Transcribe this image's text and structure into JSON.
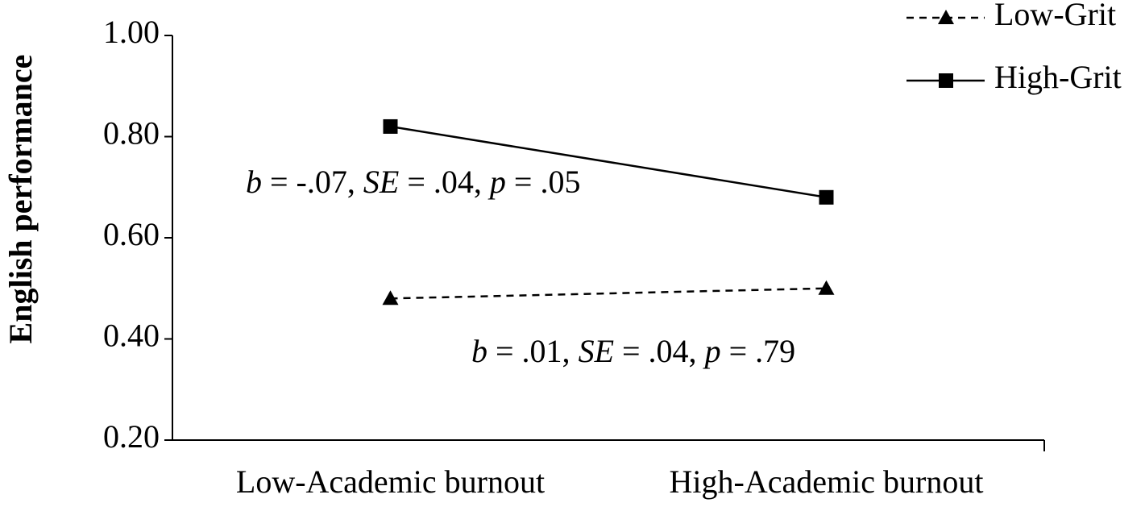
{
  "chart_data": {
    "type": "line",
    "y_label": "English performance",
    "categories": [
      "Low-Academic burnout",
      "High-Academic burnout"
    ],
    "series": [
      {
        "name": "Low-Grit",
        "color": "#000000",
        "dashed": true,
        "marker": "triangle",
        "values": [
          0.48,
          0.5
        ]
      },
      {
        "name": "High-Grit",
        "color": "#000000",
        "dashed": false,
        "marker": "square",
        "values": [
          0.82,
          0.68
        ]
      }
    ],
    "ylim": [
      0.2,
      1.0
    ],
    "yticks": [
      {
        "value": 0.2,
        "label": "0.20"
      },
      {
        "value": 0.4,
        "label": "0.40"
      },
      {
        "value": 0.6,
        "label": "0.60"
      },
      {
        "value": 0.8,
        "label": "0.80"
      },
      {
        "value": 1.0,
        "label": "1.00"
      }
    ],
    "annotations": [
      [
        "b",
        " = -.07, ",
        "SE",
        " = .04, ",
        "p",
        " = .05"
      ],
      [
        "b",
        " = .01, ",
        "SE",
        " = .04, ",
        "p",
        " = .79"
      ]
    ]
  }
}
